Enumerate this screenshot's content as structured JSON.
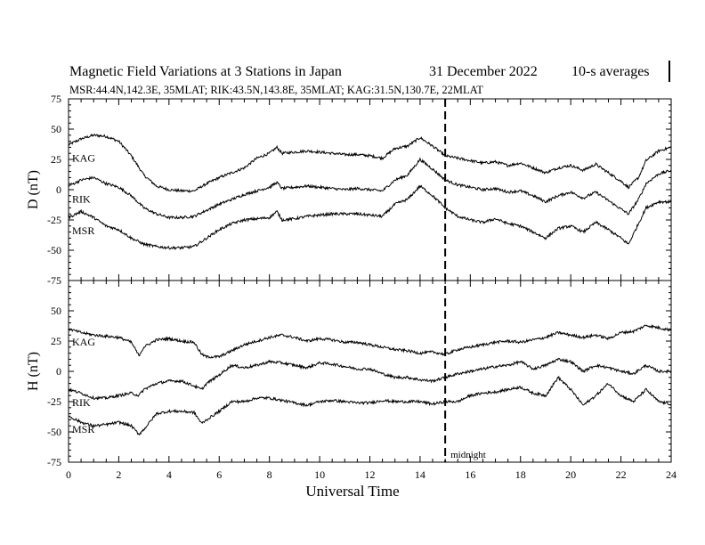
{
  "header": {
    "title": "Magnetic Field Variations at 3 Stations in Japan",
    "date": "31 December 2022",
    "averaging": "10-s averages",
    "stations": "MSR:44.4N,142.3E, 35MLAT;  RIK:43.5N,143.8E, 35MLAT;  KAG:31.5N,130.7E, 22MLAT"
  },
  "chart_data": [
    {
      "type": "line",
      "panel": "D",
      "ylabel": "D (nT)",
      "ylim": [
        -75,
        75
      ],
      "yticks": [
        "75",
        "50",
        "25",
        "0",
        "-25",
        "-50",
        "-75"
      ],
      "xlabel": "Universal Time",
      "xlim": [
        0,
        24
      ],
      "xticks": [
        "0",
        "2",
        "4",
        "6",
        "8",
        "10",
        "12",
        "14",
        "16",
        "18",
        "20",
        "22",
        "24"
      ],
      "midnight_ut": 15,
      "midnight_label": "midnight",
      "series": [
        {
          "name": "KAG",
          "x": [
            0,
            0.5,
            1,
            1.5,
            2,
            2.5,
            3,
            3.5,
            4,
            4.5,
            5,
            5.5,
            6,
            6.5,
            7,
            7.5,
            8,
            8.3,
            8.5,
            9,
            9.5,
            10,
            10.5,
            11,
            11.5,
            12,
            12.5,
            13,
            13.5,
            14,
            14.5,
            15,
            15.5,
            16,
            16.5,
            17,
            17.5,
            18,
            18.5,
            19,
            19.5,
            20,
            20.5,
            21,
            21.5,
            22,
            22.3,
            22.7,
            23,
            23.5,
            24
          ],
          "y": [
            37,
            42,
            45,
            44,
            40,
            28,
            12,
            3,
            0,
            -1,
            -1,
            5,
            10,
            14,
            18,
            26,
            30,
            35,
            30,
            31,
            32,
            31,
            30,
            29,
            29,
            28,
            26,
            34,
            36,
            43,
            36,
            28,
            26,
            24,
            22,
            23,
            20,
            22,
            18,
            14,
            18,
            20,
            16,
            21,
            14,
            7,
            2,
            10,
            24,
            32,
            35
          ]
        },
        {
          "name": "RIK",
          "x": [
            0,
            0.5,
            1,
            1.5,
            2,
            2.5,
            3,
            3.5,
            4,
            4.5,
            5,
            5.5,
            6,
            6.5,
            7,
            7.5,
            8,
            8.3,
            8.5,
            9,
            9.5,
            10,
            10.5,
            11,
            11.5,
            12,
            12.5,
            13,
            13.5,
            14,
            14.5,
            15,
            15.5,
            16,
            16.5,
            17,
            17.5,
            18,
            18.5,
            19,
            19.5,
            20,
            20.5,
            21,
            21.5,
            22,
            22.3,
            22.7,
            23,
            23.5,
            24
          ],
          "y": [
            3,
            8,
            10,
            5,
            2,
            -5,
            -15,
            -20,
            -23,
            -23,
            -22,
            -17,
            -12,
            -8,
            -4,
            -1,
            2,
            6,
            1,
            2,
            3,
            2,
            1,
            0,
            1,
            0,
            -1,
            8,
            12,
            25,
            17,
            8,
            4,
            2,
            0,
            1,
            -2,
            -1,
            -5,
            -10,
            -5,
            -2,
            -7,
            -2,
            -9,
            -16,
            -20,
            -8,
            5,
            13,
            16
          ]
        },
        {
          "name": "MSR",
          "x": [
            0,
            0.5,
            1,
            1.5,
            2,
            2.5,
            3,
            3.5,
            4,
            4.5,
            5,
            5.5,
            6,
            6.5,
            7,
            7.5,
            8,
            8.3,
            8.5,
            9,
            9.5,
            10,
            10.5,
            11,
            11.5,
            12,
            12.5,
            13,
            13.5,
            14,
            14.5,
            15,
            15.5,
            16,
            16.5,
            17,
            17.5,
            18,
            18.5,
            19,
            19.5,
            20,
            20.5,
            21,
            21.5,
            22,
            22.3,
            22.7,
            23,
            23.5,
            24
          ],
          "y": [
            -23,
            -18,
            -23,
            -30,
            -33,
            -40,
            -45,
            -47,
            -48,
            -48,
            -47,
            -40,
            -33,
            -28,
            -25,
            -24,
            -23,
            -18,
            -25,
            -24,
            -22,
            -21,
            -20,
            -20,
            -20,
            -21,
            -22,
            -12,
            -8,
            3,
            -5,
            -15,
            -22,
            -25,
            -27,
            -24,
            -28,
            -30,
            -35,
            -40,
            -32,
            -30,
            -35,
            -27,
            -33,
            -40,
            -45,
            -28,
            -15,
            -10,
            -10
          ]
        }
      ]
    },
    {
      "type": "line",
      "panel": "H",
      "ylabel": "H (nT)",
      "ylim": [
        -75,
        75
      ],
      "yticks": [
        "75",
        "50",
        "25",
        "0",
        "-25",
        "-50",
        "-75"
      ],
      "xlabel": "Universal Time",
      "xlim": [
        0,
        24
      ],
      "xticks": [
        "0",
        "2",
        "4",
        "6",
        "8",
        "10",
        "12",
        "14",
        "16",
        "18",
        "20",
        "22",
        "24"
      ],
      "series": [
        {
          "name": "KAG",
          "x": [
            0,
            0.5,
            1,
            1.5,
            2,
            2.5,
            2.8,
            3,
            3.5,
            4,
            4.5,
            5,
            5.3,
            5.5,
            6,
            6.5,
            7,
            7.5,
            8,
            8.5,
            9,
            9.5,
            10,
            10.5,
            11,
            11.5,
            12,
            12.5,
            13,
            13.5,
            14,
            14.5,
            15,
            15.5,
            16,
            16.5,
            17,
            17.5,
            18,
            18.5,
            19,
            19.5,
            20,
            20.5,
            21,
            21.5,
            22,
            22.5,
            23,
            23.5,
            24
          ],
          "y": [
            35,
            32,
            30,
            29,
            28,
            24,
            13,
            20,
            26,
            27,
            25,
            24,
            14,
            12,
            12,
            17,
            22,
            25,
            28,
            30,
            28,
            25,
            27,
            26,
            24,
            24,
            22,
            20,
            18,
            17,
            15,
            16,
            14,
            18,
            20,
            22,
            24,
            25,
            24,
            26,
            28,
            32,
            30,
            28,
            30,
            27,
            32,
            33,
            38,
            36,
            34
          ]
        },
        {
          "name": "RIK",
          "x": [
            0,
            0.5,
            1,
            1.5,
            2,
            2.5,
            2.8,
            3,
            3.5,
            4,
            4.5,
            5,
            5.3,
            5.5,
            6,
            6.5,
            7,
            7.5,
            8,
            8.5,
            9,
            9.5,
            10,
            10.5,
            11,
            11.5,
            12,
            12.5,
            13,
            13.5,
            14,
            14.5,
            15,
            15.5,
            16,
            16.5,
            17,
            17.5,
            18,
            18.5,
            19,
            19.5,
            20,
            20.5,
            21,
            21.5,
            22,
            22.5,
            23,
            23.5,
            24
          ],
          "y": [
            -15,
            -18,
            -22,
            -22,
            -20,
            -18,
            -20,
            -15,
            -10,
            -8,
            -8,
            -12,
            -15,
            -10,
            -3,
            5,
            3,
            5,
            8,
            7,
            5,
            3,
            7,
            6,
            4,
            2,
            2,
            -2,
            -5,
            -5,
            -7,
            -8,
            -5,
            -2,
            0,
            2,
            4,
            5,
            8,
            2,
            5,
            10,
            8,
            0,
            5,
            3,
            0,
            -2,
            5,
            0,
            0
          ]
        },
        {
          "name": "MSR",
          "x": [
            0,
            0.5,
            1,
            1.5,
            2,
            2.5,
            2.8,
            3,
            3.5,
            4,
            4.5,
            5,
            5.3,
            5.5,
            6,
            6.5,
            7,
            7.5,
            8,
            8.5,
            9,
            9.5,
            10,
            10.5,
            11,
            11.5,
            12,
            12.5,
            13,
            13.5,
            14,
            14.5,
            15,
            15.5,
            16,
            16.5,
            17,
            17.5,
            18,
            18.5,
            19,
            19.5,
            20,
            20.5,
            21,
            21.5,
            22,
            22.5,
            23,
            23.5,
            24
          ],
          "y": [
            -37,
            -42,
            -45,
            -44,
            -42,
            -45,
            -52,
            -48,
            -35,
            -33,
            -33,
            -34,
            -43,
            -40,
            -33,
            -25,
            -25,
            -22,
            -22,
            -24,
            -26,
            -28,
            -25,
            -24,
            -25,
            -26,
            -26,
            -24,
            -25,
            -25,
            -25,
            -27,
            -25,
            -25,
            -20,
            -18,
            -17,
            -15,
            -13,
            -18,
            -20,
            -5,
            -15,
            -28,
            -20,
            -10,
            -20,
            -25,
            -15,
            -25,
            -27
          ]
        }
      ]
    }
  ]
}
